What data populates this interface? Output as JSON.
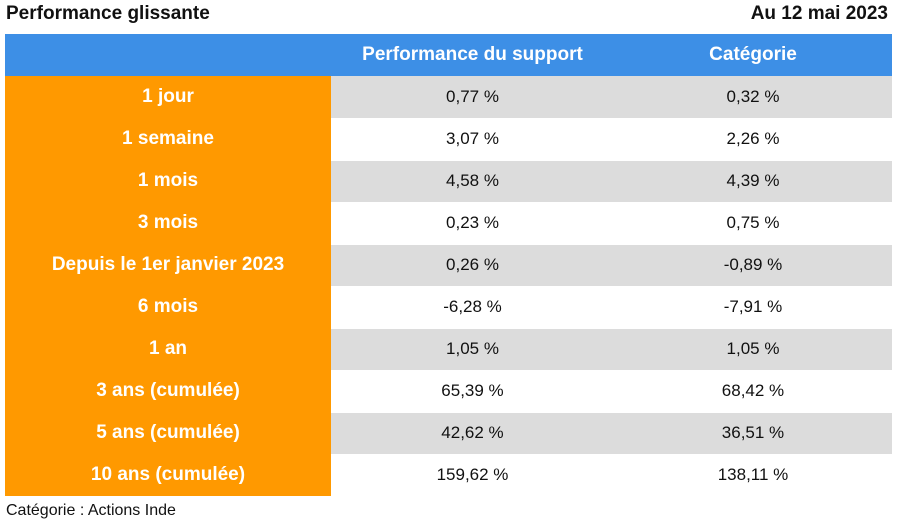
{
  "header": {
    "title": "Performance glissante",
    "date": "Au 12 mai 2023"
  },
  "table": {
    "columns": [
      "",
      "Performance du support",
      "Catégorie"
    ],
    "rows": [
      {
        "period": "1 jour",
        "support": "0,77 %",
        "categorie": "0,32 %"
      },
      {
        "period": "1 semaine",
        "support": "3,07 %",
        "categorie": "2,26 %"
      },
      {
        "period": "1 mois",
        "support": "4,58 %",
        "categorie": "4,39 %"
      },
      {
        "period": "3 mois",
        "support": "0,23 %",
        "categorie": "0,75 %"
      },
      {
        "period": "Depuis le 1er janvier 2023",
        "support": "0,26 %",
        "categorie": "-0,89 %"
      },
      {
        "period": "6 mois",
        "support": "-6,28 %",
        "categorie": "-7,91 %"
      },
      {
        "period": "1 an",
        "support": "1,05 %",
        "categorie": "1,05 %"
      },
      {
        "period": "3 ans (cumulée)",
        "support": "65,39 %",
        "categorie": "68,42 %"
      },
      {
        "period": "5 ans (cumulée)",
        "support": "42,62 %",
        "categorie": "36,51 %"
      },
      {
        "period": "10 ans (cumulée)",
        "support": "159,62 %",
        "categorie": "138,11 %"
      }
    ]
  },
  "footer": {
    "note": "Catégorie : Actions Inde"
  },
  "colors": {
    "header_blue": "#3d8fe6",
    "period_orange": "#ff9900",
    "row_gray": "#dcdcdc"
  }
}
